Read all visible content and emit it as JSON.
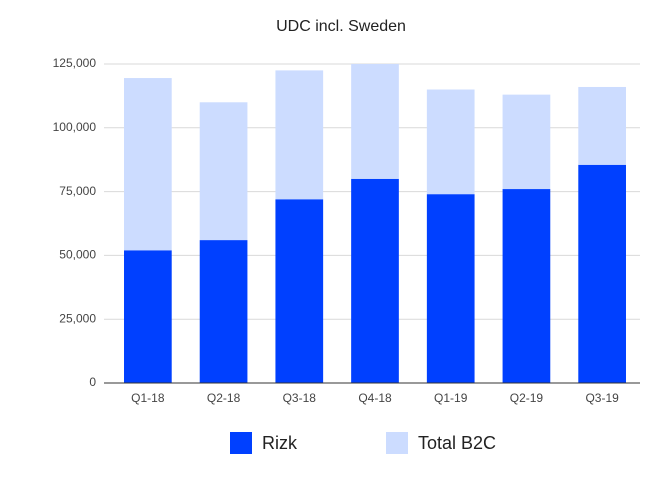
{
  "chart_data": {
    "type": "stacked-bar",
    "title": "UDC incl. Sweden",
    "categories": [
      "Q1-18",
      "Q2-18",
      "Q3-18",
      "Q4-18",
      "Q1-19",
      "Q2-19",
      "Q3-19"
    ],
    "series": [
      {
        "name": "Rizk",
        "color": "#0040ff",
        "values": [
          52000,
          56000,
          72000,
          80000,
          74000,
          76000,
          85500
        ]
      },
      {
        "name": "Total B2C",
        "color": "#ccdcff",
        "values": [
          67500,
          54000,
          50500,
          45000,
          41000,
          37000,
          30500
        ]
      }
    ],
    "ylim": [
      0,
      125000
    ],
    "yticks": [
      0,
      {
        "value": 25000,
        "label": "25,000"
      },
      {
        "value": 50000,
        "label": "50,000"
      },
      {
        "value": 75000,
        "label": "75,000"
      },
      {
        "value": 100000,
        "label": "100,000"
      },
      {
        "value": 125000,
        "label": "125,000"
      }
    ],
    "grid": true,
    "legend": "bottom"
  }
}
